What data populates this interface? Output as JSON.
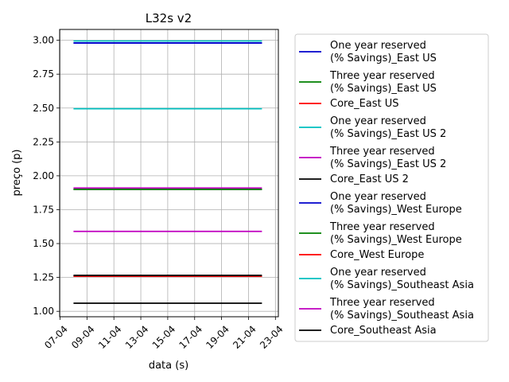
{
  "chart_data": {
    "type": "line",
    "title": "L32s v2",
    "xlabel": "data (s)",
    "ylabel": "preço (p)",
    "x_tick_labels": [
      "07-04",
      "09-04",
      "11-04",
      "13-04",
      "15-04",
      "17-04",
      "19-04",
      "21-04",
      "23-04"
    ],
    "y_tick_labels": [
      "1.00",
      "1.25",
      "1.50",
      "1.75",
      "2.00",
      "2.25",
      "2.50",
      "2.75",
      "3.00"
    ],
    "ylim": [
      0.96,
      3.08
    ],
    "grid": true,
    "legend_position": "right, outside plot",
    "x": [
      "08-04",
      "22-04"
    ],
    "series": [
      {
        "name": "One year reserved\n(% Savings)_East US",
        "color": "#0000cc",
        "values": [
          2.98,
          2.98
        ]
      },
      {
        "name": "Three year reserved\n(% Savings)_East US",
        "color": "#008000",
        "values": [
          1.9,
          1.9
        ]
      },
      {
        "name": "Core_East US",
        "color": "#ff0000",
        "values": [
          1.26,
          1.26
        ]
      },
      {
        "name": "One year reserved\n(% Savings)_East US 2",
        "color": "#00bfbf",
        "values": [
          2.495,
          2.495
        ]
      },
      {
        "name": "Three year reserved\n(% Savings)_East US 2",
        "color": "#bf00bf",
        "values": [
          1.91,
          1.91
        ]
      },
      {
        "name": "Core_East US 2",
        "color": "#000000",
        "values": [
          1.06,
          1.06
        ]
      },
      {
        "name": "One year reserved\n(% Savings)_West Europe",
        "color": "#0000cc",
        "values": [
          2.98,
          2.98
        ]
      },
      {
        "name": "Three year reserved\n(% Savings)_West Europe",
        "color": "#008000",
        "values": [
          1.9,
          1.9
        ]
      },
      {
        "name": "Core_West Europe",
        "color": "#ff0000",
        "values": [
          1.26,
          1.26
        ]
      },
      {
        "name": "One year reserved\n(% Savings)_Southeast Asia",
        "color": "#00bfbf",
        "values": [
          2.995,
          2.995
        ]
      },
      {
        "name": "Three year reserved\n(% Savings)_Southeast Asia",
        "color": "#bf00bf",
        "values": [
          1.59,
          1.59
        ]
      },
      {
        "name": "Core_Southeast Asia",
        "color": "#000000",
        "values": [
          1.265,
          1.265
        ]
      }
    ]
  }
}
